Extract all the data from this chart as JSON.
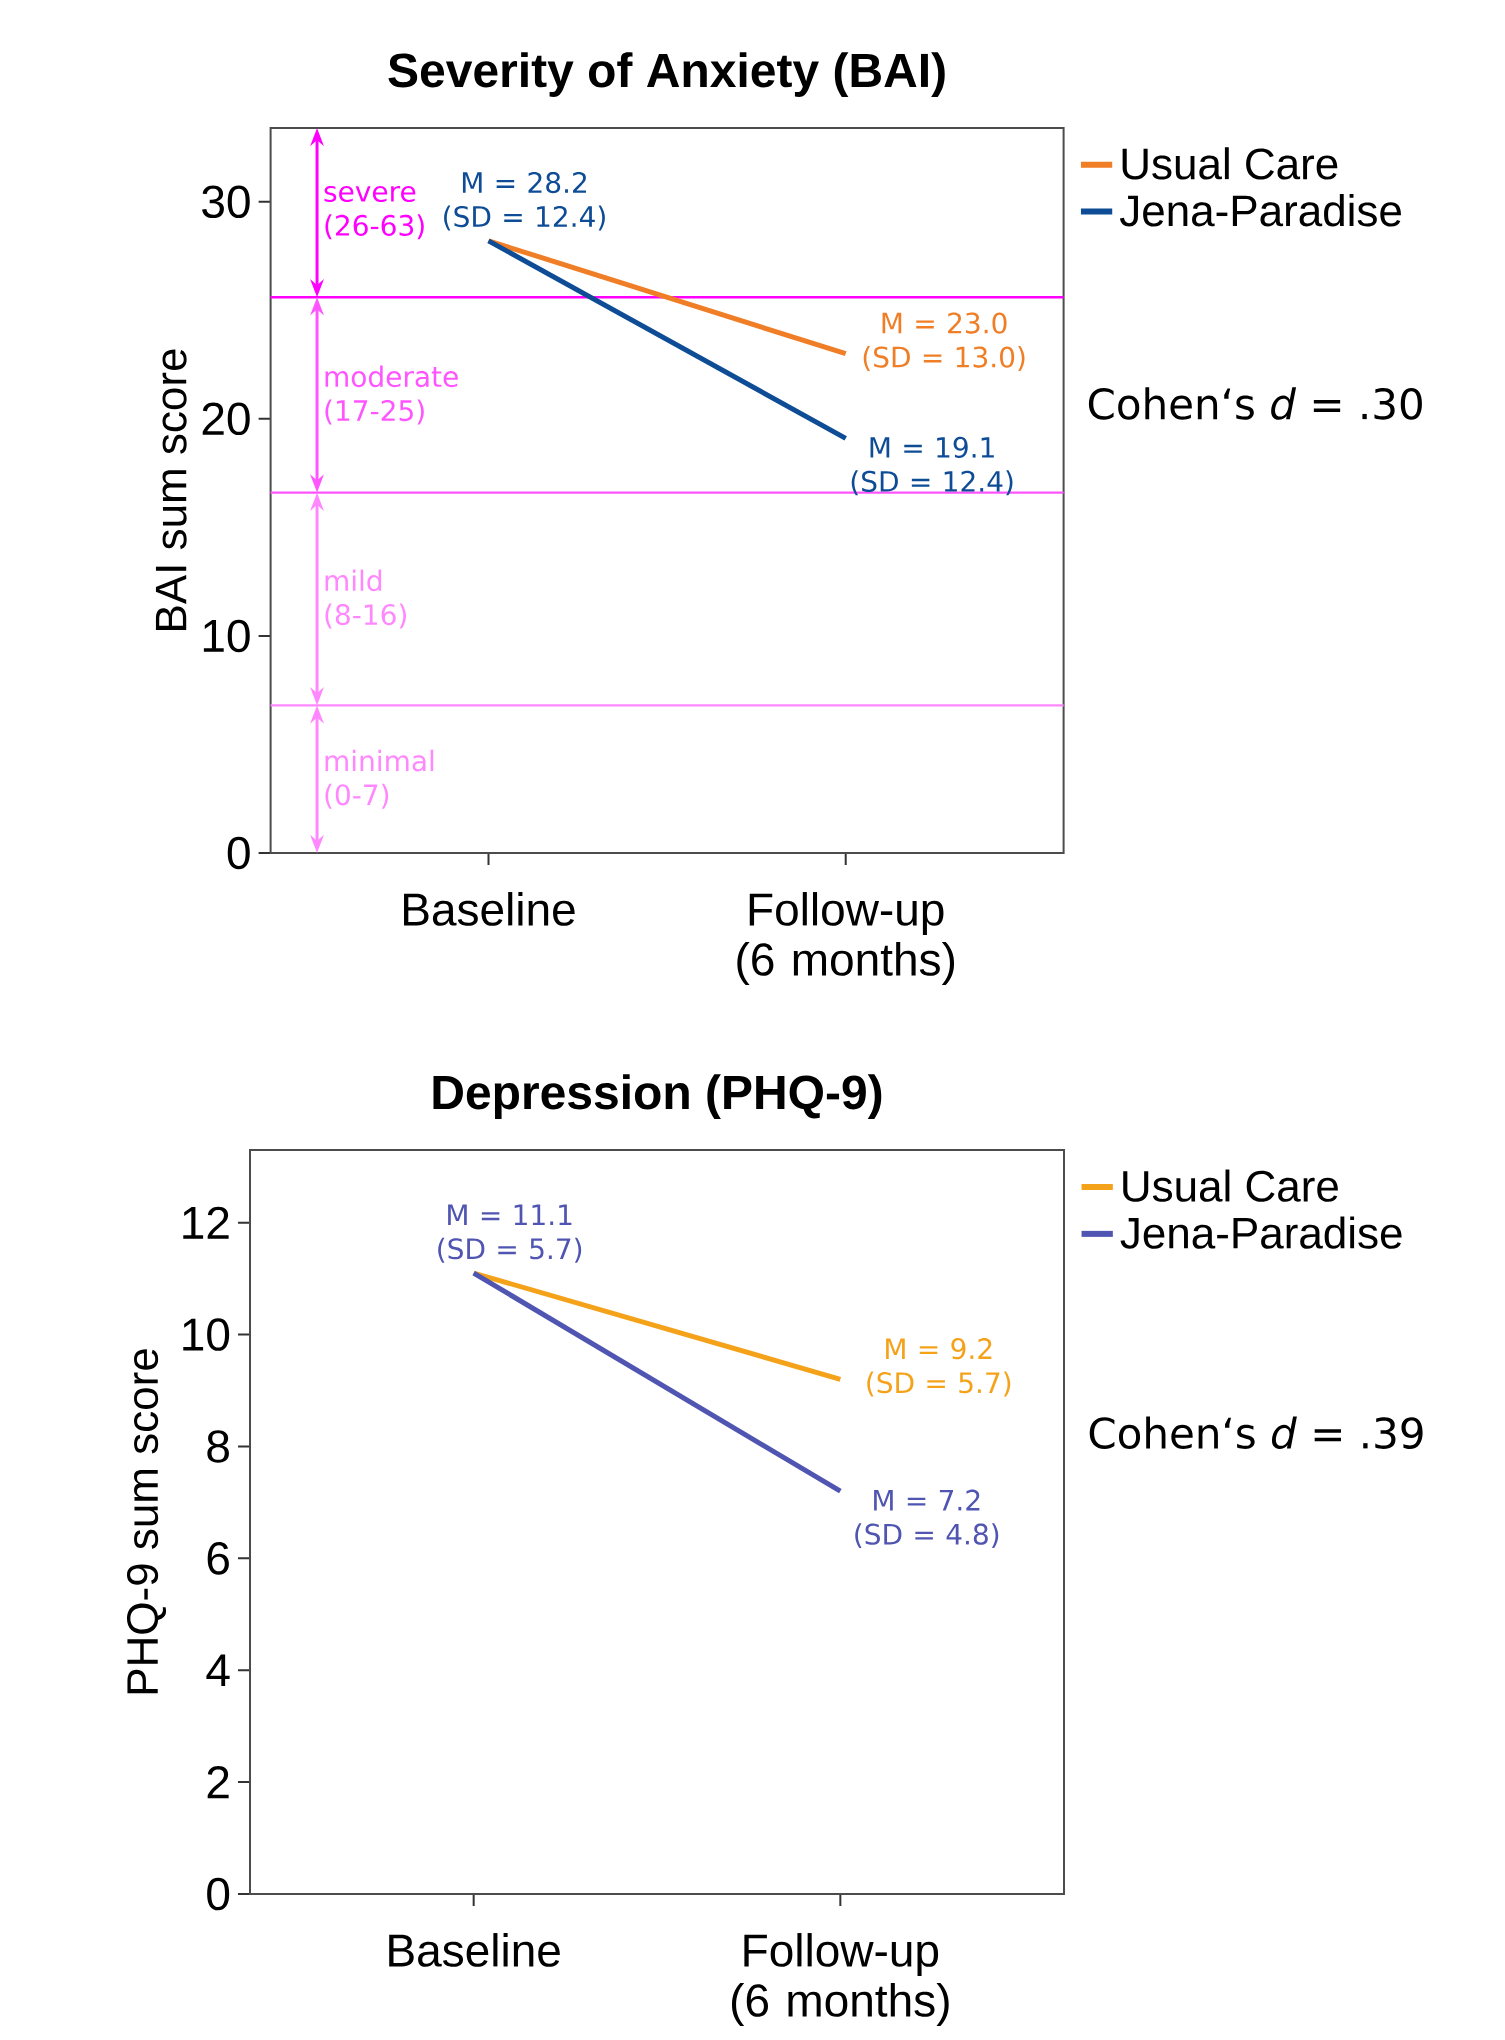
{
  "chart_data": [
    {
      "type": "line",
      "title": "Severity of Anxiety (BAI)",
      "ylabel": "BAI sum score",
      "categories": [
        "Baseline",
        "Follow-up (6 months)"
      ],
      "series": [
        {
          "name": "Usual Care",
          "color": "#f07e26",
          "values": [
            28.2,
            23.0
          ],
          "value_labels": [
            null,
            "M = 23.0 (SD = 13.0)"
          ]
        },
        {
          "name": "Jena-Paradise",
          "color": "#0e4c96",
          "values": [
            28.2,
            19.1
          ],
          "value_labels": [
            "M = 28.2 (SD = 12.4)",
            "M = 19.1 (SD = 12.4)"
          ]
        }
      ],
      "ylim": [
        0,
        33.4
      ],
      "yticks": [
        0,
        10,
        20,
        30
      ],
      "grid": false,
      "legend": "right",
      "ref_lines": [
        {
          "axis": "y",
          "value": 25.6,
          "color": "#ff00ff"
        },
        {
          "axis": "y",
          "value": 16.6,
          "color": "#ff55ff"
        },
        {
          "axis": "y",
          "value": 6.8,
          "color": "#ff88ff"
        }
      ],
      "annotations": [
        "severe (26-63)",
        "moderate (17-25)",
        "mild (8-16)",
        "minimal (0-7)",
        "Cohen‘s *d* = .30"
      ]
    },
    {
      "type": "line",
      "title": "Depression (PHQ-9)",
      "ylabel": "PHQ-9 sum score",
      "categories": [
        "Baseline",
        "Follow-up (6 months)"
      ],
      "series": [
        {
          "name": "Usual Care",
          "color": "#f5a21b",
          "values": [
            11.1,
            9.2
          ],
          "value_labels": [
            null,
            "M = 9.2 (SD = 5.7)"
          ]
        },
        {
          "name": "Jena-Paradise",
          "color": "#4f55b0",
          "values": [
            11.1,
            7.2
          ],
          "value_labels": [
            "M = 11.1 (SD = 5.7)",
            "M = 7.2 (SD = 4.8)"
          ]
        }
      ],
      "ylim": [
        0,
        13.3
      ],
      "yticks": [
        0,
        2,
        4,
        6,
        8,
        10,
        12
      ],
      "grid": false,
      "legend": "right",
      "annotations": [
        "Cohen‘s *d* = .39"
      ]
    }
  ]
}
